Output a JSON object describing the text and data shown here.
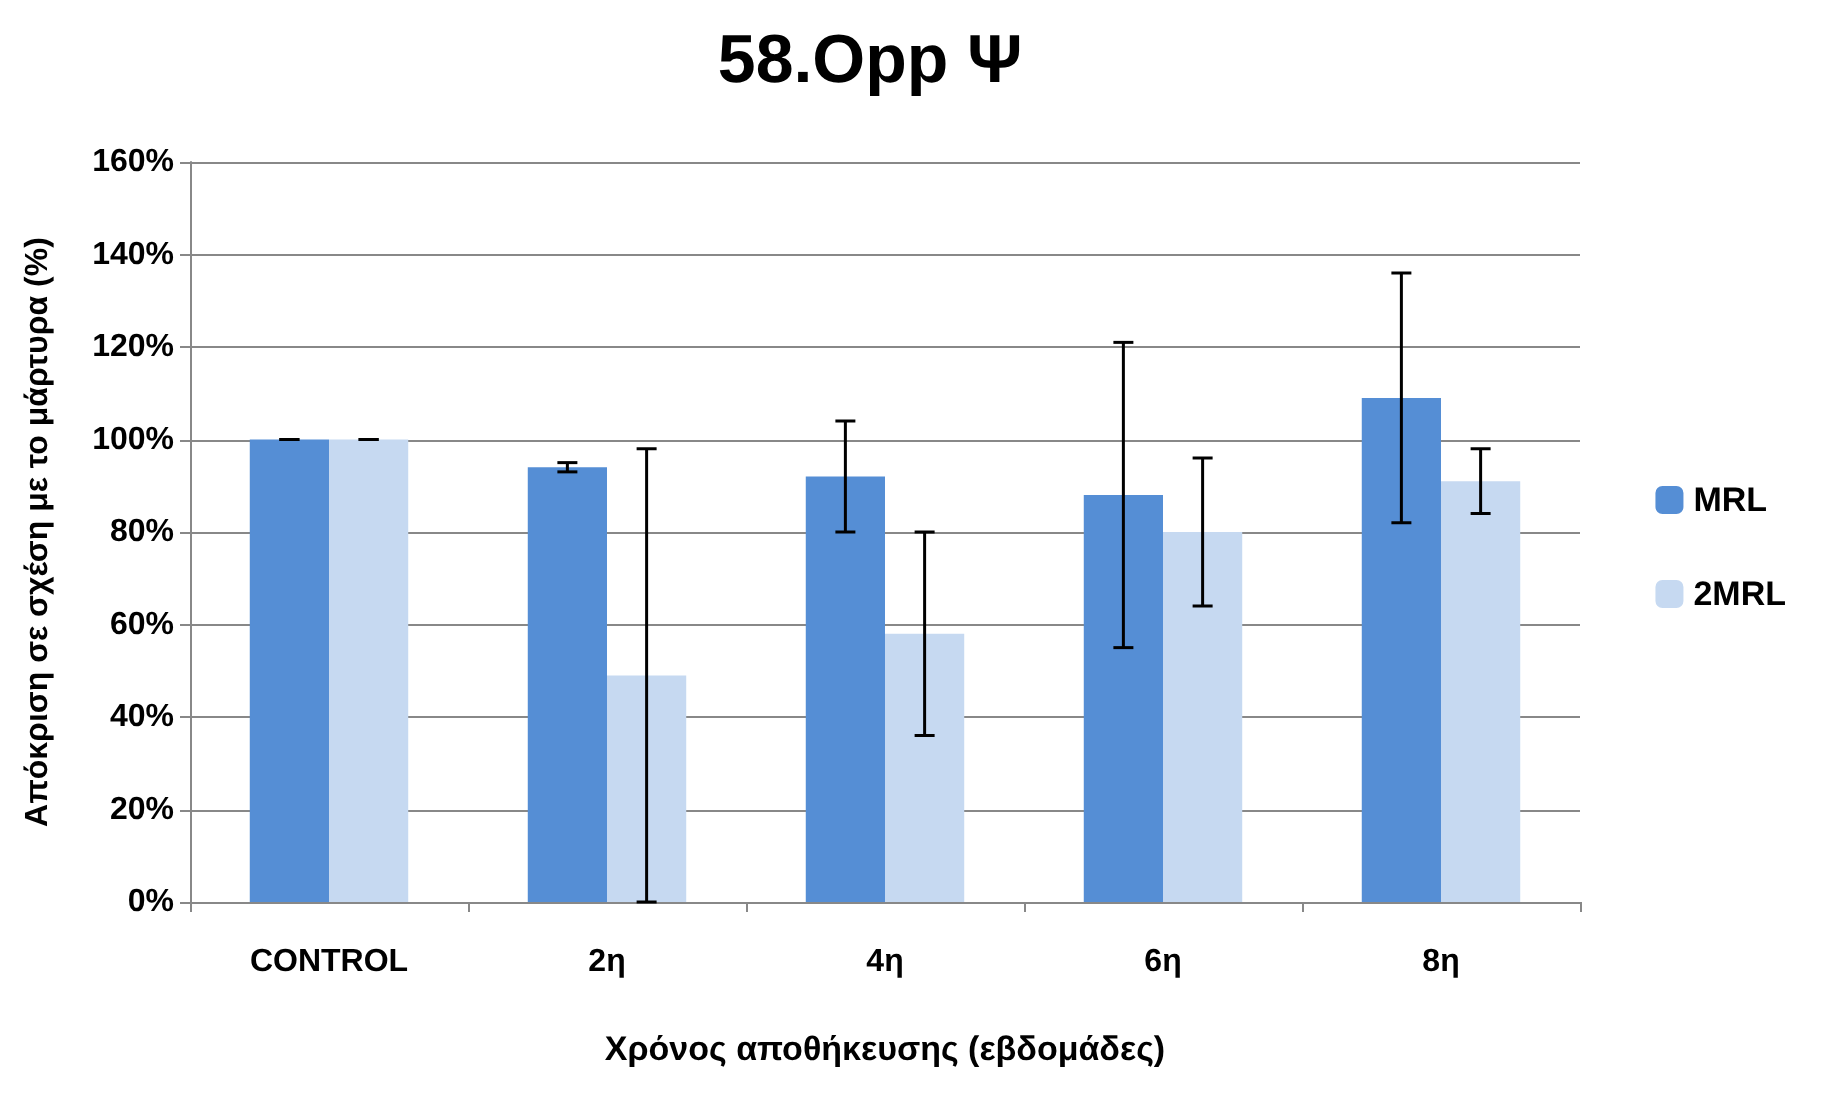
{
  "chart_data": {
    "type": "bar",
    "title": "58.Opp Ψ",
    "xlabel": "Χρόνος αποθήκευσης (εβδομάδες)",
    "ylabel": "Απόκριση σε σχέση με το μάρτυρα (%)",
    "categories": [
      "CONTROL",
      "2η",
      "4η",
      "6η",
      "8η"
    ],
    "series": [
      {
        "name": "MRL",
        "color": "#558ed5",
        "values": [
          100,
          94,
          92,
          88,
          109
        ],
        "errors": [
          0,
          1,
          12,
          33,
          27
        ]
      },
      {
        "name": "2MRL",
        "color": "#c6d9f1",
        "values": [
          100,
          49,
          58,
          80,
          91
        ],
        "errors": [
          0,
          49,
          22,
          16,
          7
        ]
      }
    ],
    "ylim": [
      0,
      160
    ],
    "yticks": [
      {
        "value": 0,
        "label": "0%"
      },
      {
        "value": 20,
        "label": "20%"
      },
      {
        "value": 40,
        "label": "40%"
      },
      {
        "value": 60,
        "label": "60%"
      },
      {
        "value": 80,
        "label": "80%"
      },
      {
        "value": 100,
        "label": "100%"
      },
      {
        "value": 120,
        "label": "120%"
      },
      {
        "value": 140,
        "label": "140%"
      },
      {
        "value": 160,
        "label": "160%"
      }
    ],
    "grid": "y",
    "legend": "right"
  }
}
